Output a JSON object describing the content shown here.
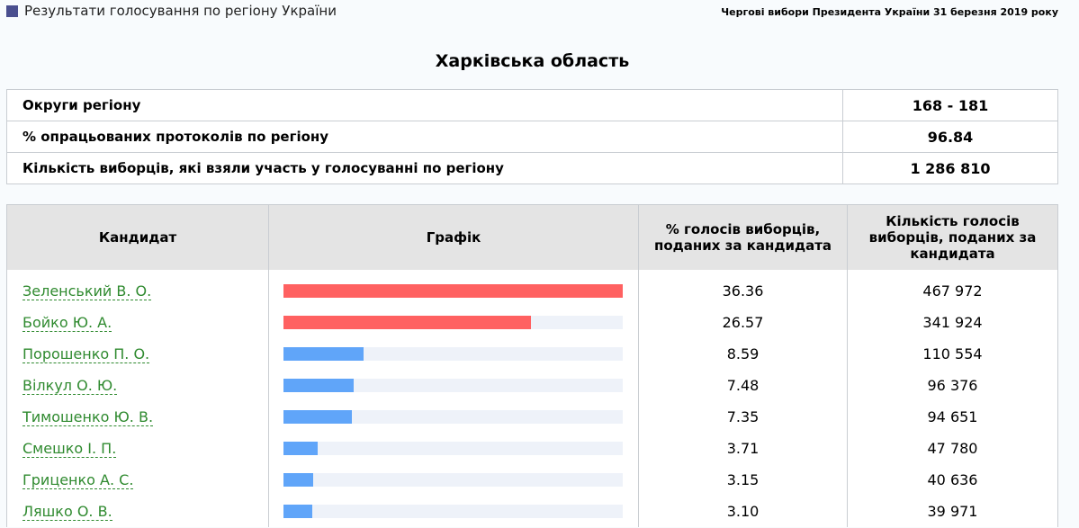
{
  "header": {
    "title": "Результати голосування по регіону України",
    "election": "Чергові вибори Президента України 31 березня 2019 року"
  },
  "region": "Харківська область",
  "summary": [
    {
      "label": "Округи регіону",
      "value": "168 - 181"
    },
    {
      "label": "% опрацьованих протоколів по регіону",
      "value": "96.84"
    },
    {
      "label": "Кількість виборців, які взяли участь у голосуванні по регіону",
      "value": "1 286 810"
    }
  ],
  "table": {
    "headers": [
      "Кандидат",
      "Графік",
      "% голосів виборців, поданих за кандидата",
      "Кількість голосів виборців, поданих за кандидата"
    ],
    "rows": [
      {
        "name": "Зеленський В. О.",
        "percent": "36.36",
        "votes": "467 972",
        "bar_value": 36.36,
        "bar_color": "#ff6161"
      },
      {
        "name": "Бойко Ю. А.",
        "percent": "26.57",
        "votes": "341 924",
        "bar_value": 26.57,
        "bar_color": "#ff6161"
      },
      {
        "name": "Порошенко П. О.",
        "percent": "8.59",
        "votes": "110 554",
        "bar_value": 8.59,
        "bar_color": "#60a5f9"
      },
      {
        "name": "Вілкул О. Ю.",
        "percent": "7.48",
        "votes": "96 376",
        "bar_value": 7.48,
        "bar_color": "#60a5f9"
      },
      {
        "name": "Тимошенко Ю. В.",
        "percent": "7.35",
        "votes": "94 651",
        "bar_value": 7.35,
        "bar_color": "#60a5f9"
      },
      {
        "name": "Смешко І. П.",
        "percent": "3.71",
        "votes": "47 780",
        "bar_value": 3.71,
        "bar_color": "#60a5f9"
      },
      {
        "name": "Гриценко А. С.",
        "percent": "3.15",
        "votes": "40 636",
        "bar_value": 3.15,
        "bar_color": "#60a5f9"
      },
      {
        "name": "Ляшко О. В.",
        "percent": "3.10",
        "votes": "39 971",
        "bar_value": 3.1,
        "bar_color": "#60a5f9"
      }
    ]
  }
}
